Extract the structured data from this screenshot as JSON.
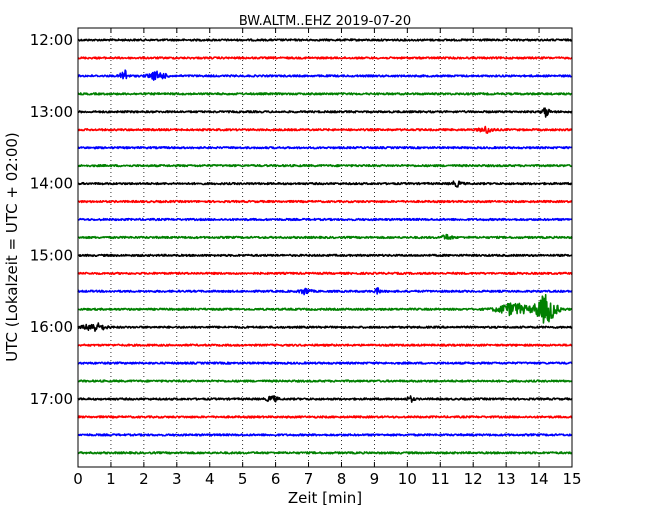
{
  "chart_data": {
    "type": "line",
    "title": "BW.ALTM..EHZ 2019-07-20",
    "xlabel": "Zeit  [min]",
    "ylabel": "UTC (Lokalzeit = UTC + 02:00)",
    "xlim": [
      0,
      15
    ],
    "x_ticks": [
      0,
      1,
      2,
      3,
      4,
      5,
      6,
      7,
      8,
      9,
      10,
      11,
      12,
      13,
      14,
      15
    ],
    "x_grid": "dotted vertical lines at each minute",
    "y_ticks": [
      "12:00",
      "13:00",
      "14:00",
      "15:00",
      "16:00",
      "17:00"
    ],
    "rows_per_hour": 4,
    "row_minutes": 15,
    "start_time": "12:00",
    "trace_colors": [
      "#000000",
      "#ff0000",
      "#0000ff",
      "#008000"
    ],
    "series": [
      {
        "row_start": "12:00",
        "color": "#000000",
        "noise": 0.9,
        "events": []
      },
      {
        "row_start": "12:15",
        "color": "#ff0000",
        "noise": 0.9,
        "events": []
      },
      {
        "row_start": "12:30",
        "color": "#0000ff",
        "noise": 0.9,
        "events": [
          {
            "t": 1.4,
            "dur": 0.2,
            "amp": 7
          },
          {
            "t": 2.4,
            "dur": 0.5,
            "amp": 4
          }
        ]
      },
      {
        "row_start": "12:45",
        "color": "#008000",
        "noise": 0.9,
        "events": []
      },
      {
        "row_start": "13:00",
        "color": "#000000",
        "noise": 0.9,
        "events": [
          {
            "t": 14.2,
            "dur": 0.2,
            "amp": 5
          }
        ]
      },
      {
        "row_start": "13:15",
        "color": "#ff0000",
        "noise": 0.9,
        "events": [
          {
            "t": 12.4,
            "dur": 0.4,
            "amp": 3
          }
        ]
      },
      {
        "row_start": "13:30",
        "color": "#0000ff",
        "noise": 0.9,
        "events": []
      },
      {
        "row_start": "13:45",
        "color": "#008000",
        "noise": 0.9,
        "events": []
      },
      {
        "row_start": "14:00",
        "color": "#000000",
        "noise": 0.9,
        "events": [
          {
            "t": 11.5,
            "dur": 0.3,
            "amp": 2.5
          }
        ]
      },
      {
        "row_start": "14:15",
        "color": "#ff0000",
        "noise": 0.9,
        "events": []
      },
      {
        "row_start": "14:30",
        "color": "#0000ff",
        "noise": 0.9,
        "events": []
      },
      {
        "row_start": "14:45",
        "color": "#008000",
        "noise": 0.9,
        "events": [
          {
            "t": 11.2,
            "dur": 0.3,
            "amp": 2.5
          }
        ]
      },
      {
        "row_start": "15:00",
        "color": "#000000",
        "noise": 0.9,
        "events": []
      },
      {
        "row_start": "15:15",
        "color": "#ff0000",
        "noise": 0.9,
        "events": []
      },
      {
        "row_start": "15:30",
        "color": "#0000ff",
        "noise": 0.9,
        "events": [
          {
            "t": 6.9,
            "dur": 0.3,
            "amp": 3
          },
          {
            "t": 9.1,
            "dur": 0.2,
            "amp": 2.5
          }
        ]
      },
      {
        "row_start": "15:45",
        "color": "#008000",
        "noise": 0.9,
        "events": [
          {
            "t": 13.2,
            "dur": 0.9,
            "amp": 6
          },
          {
            "t": 14.2,
            "dur": 0.6,
            "amp": 14
          }
        ]
      },
      {
        "row_start": "16:00",
        "color": "#000000",
        "noise": 0.9,
        "events": [
          {
            "t": 0.5,
            "dur": 0.6,
            "amp": 4
          }
        ]
      },
      {
        "row_start": "16:15",
        "color": "#ff0000",
        "noise": 0.9,
        "events": []
      },
      {
        "row_start": "16:30",
        "color": "#0000ff",
        "noise": 0.9,
        "events": []
      },
      {
        "row_start": "16:45",
        "color": "#008000",
        "noise": 0.9,
        "events": []
      },
      {
        "row_start": "17:00",
        "color": "#000000",
        "noise": 0.9,
        "events": [
          {
            "t": 5.9,
            "dur": 0.3,
            "amp": 3
          },
          {
            "t": 10.1,
            "dur": 0.2,
            "amp": 2.5
          }
        ]
      },
      {
        "row_start": "17:15",
        "color": "#ff0000",
        "noise": 0.9,
        "events": []
      },
      {
        "row_start": "17:30",
        "color": "#0000ff",
        "noise": 0.9,
        "events": []
      },
      {
        "row_start": "17:45",
        "color": "#008000",
        "noise": 0.9,
        "events": []
      }
    ]
  }
}
